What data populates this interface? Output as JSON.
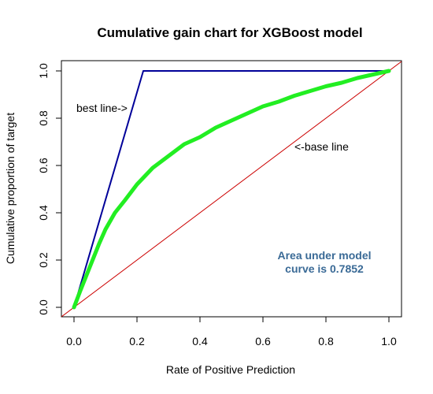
{
  "chart_data": {
    "type": "line",
    "title": "Cumulative gain chart for XGBoost model",
    "xlabel": "Rate of Positive Prediction",
    "ylabel": "Cumulative proportion of target",
    "xlim": [
      0,
      1
    ],
    "ylim": [
      0,
      1
    ],
    "x_ticks": [
      0.0,
      0.2,
      0.4,
      0.6,
      0.8,
      1.0
    ],
    "y_ticks": [
      0.0,
      0.2,
      0.4,
      0.6,
      0.8,
      1.0
    ],
    "x_tick_labels": [
      "0.0",
      "0.2",
      "0.4",
      "0.6",
      "0.8",
      "1.0"
    ],
    "y_tick_labels": [
      "0.0",
      "0.2",
      "0.4",
      "0.6",
      "0.8",
      "1.0"
    ],
    "grid": false,
    "series": [
      {
        "role": "model",
        "color": "#22ee22",
        "x": [
          0,
          0.02,
          0.05,
          0.08,
          0.1,
          0.13,
          0.16,
          0.2,
          0.25,
          0.3,
          0.35,
          0.4,
          0.45,
          0.5,
          0.55,
          0.6,
          0.65,
          0.7,
          0.75,
          0.8,
          0.85,
          0.9,
          0.95,
          1.0
        ],
        "y": [
          0,
          0.07,
          0.17,
          0.27,
          0.33,
          0.4,
          0.45,
          0.52,
          0.59,
          0.64,
          0.69,
          0.72,
          0.76,
          0.79,
          0.82,
          0.85,
          0.87,
          0.895,
          0.915,
          0.935,
          0.95,
          0.97,
          0.985,
          1.0
        ]
      },
      {
        "role": "best",
        "color": "#000099",
        "x": [
          0,
          0.22,
          1.0
        ],
        "y": [
          0,
          1.0,
          1.0
        ]
      },
      {
        "role": "base",
        "color": "#cc0000",
        "x": [
          -0.04,
          1.04
        ],
        "y": [
          -0.04,
          1.04
        ]
      }
    ],
    "annotations": {
      "best_line": "best line->",
      "base_line": "<-base line",
      "auc_line1": "Area under model",
      "auc_line2": "curve is 0.7852",
      "auc_color": "#3a6a96"
    }
  }
}
